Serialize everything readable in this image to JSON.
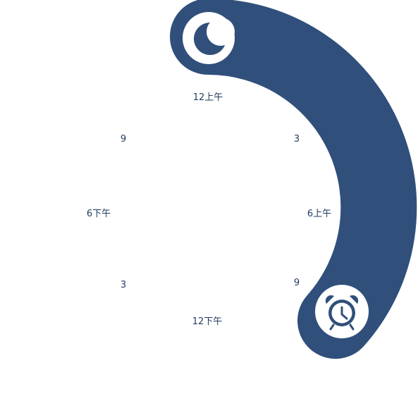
{
  "colors": {
    "arc": "#304f7b",
    "knob": "#ffffff",
    "label": "#1f3a5f"
  },
  "schedule": {
    "bedtime_icon": "moon-icon",
    "wake_icon": "alarm-clock-icon"
  },
  "dial_labels": {
    "top": "12上午",
    "upper_right": "3",
    "right": "6上午",
    "lower_right": "9",
    "bottom": "12下午",
    "lower_left": "3",
    "left": "6下午",
    "upper_left": "9"
  }
}
